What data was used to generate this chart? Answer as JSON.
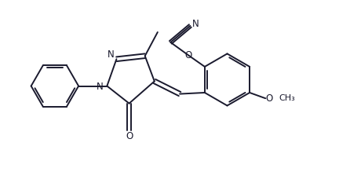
{
  "bg_color": "#ffffff",
  "line_color": "#1a1a2e",
  "line_width": 1.4,
  "font_size": 8.5,
  "figsize": [
    4.46,
    2.19
  ],
  "dpi": 100,
  "xlim": [
    0,
    11
  ],
  "ylim": [
    0,
    5.4
  ]
}
